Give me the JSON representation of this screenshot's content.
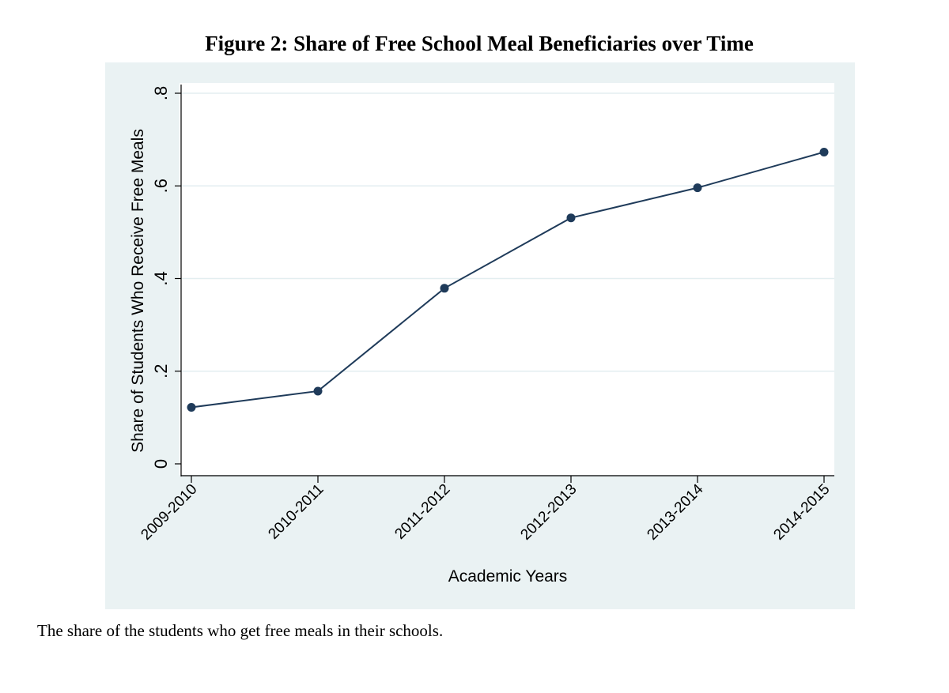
{
  "title": "Figure 2: Share of Free School Meal Beneficiaries over Time",
  "caption": "The share of the students who get free meals in their schools.",
  "colors": {
    "background_panel": "#eaf2f3",
    "plot_area": "#ffffff",
    "series": "#1f3b5a",
    "grid": "#e3eef0"
  },
  "chart_data": {
    "type": "line",
    "title": "Figure 2: Share of Free School Meal Beneficiaries over Time",
    "xlabel": "Academic Years",
    "ylabel": "Share of Students Who Receive Free Meals",
    "categories": [
      "2009-2010",
      "2010-2011",
      "2011-2012",
      "2012-2013",
      "2013-2014",
      "2014-2015"
    ],
    "series": [
      {
        "name": "Share of Students Who Receive Free Meals",
        "values": [
          0.122,
          0.157,
          0.379,
          0.531,
          0.596,
          0.673
        ]
      }
    ],
    "ylim": [
      0,
      0.8
    ],
    "yticks": [
      0,
      0.2,
      0.4,
      0.6,
      0.8
    ],
    "ytick_labels": [
      "0",
      ".2",
      ".4",
      ".6",
      ".8"
    ],
    "grid": true,
    "markers": true
  }
}
